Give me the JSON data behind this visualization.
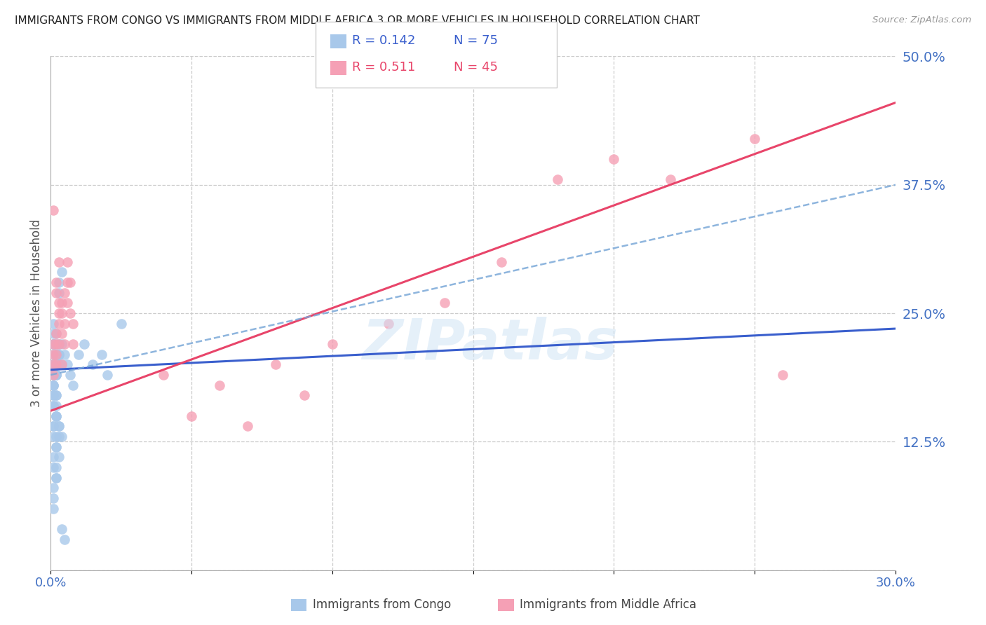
{
  "title": "IMMIGRANTS FROM CONGO VS IMMIGRANTS FROM MIDDLE AFRICA 3 OR MORE VEHICLES IN HOUSEHOLD CORRELATION CHART",
  "source": "Source: ZipAtlas.com",
  "ylabel": "3 or more Vehicles in Household",
  "legend_label1": "Immigrants from Congo",
  "legend_label2": "Immigrants from Middle Africa",
  "R1": 0.142,
  "N1": 75,
  "R2": 0.511,
  "N2": 45,
  "xlim": [
    0.0,
    0.3
  ],
  "ylim": [
    0.0,
    0.5
  ],
  "ytick_values": [
    0.0,
    0.125,
    0.25,
    0.375,
    0.5
  ],
  "color_congo": "#a8c8ea",
  "color_middle_africa": "#f5a0b5",
  "color_line_congo": "#3a5fcd",
  "color_line_middle_africa": "#e8456a",
  "color_dashed": "#7aa8d8",
  "color_axis_labels": "#4472c4",
  "background_color": "#ffffff",
  "watermark": "ZIPatlas",
  "congo_x": [
    0.001,
    0.001,
    0.001,
    0.001,
    0.001,
    0.002,
    0.002,
    0.002,
    0.002,
    0.002,
    0.001,
    0.001,
    0.001,
    0.001,
    0.002,
    0.002,
    0.002,
    0.003,
    0.003,
    0.003,
    0.001,
    0.001,
    0.001,
    0.002,
    0.002,
    0.002,
    0.003,
    0.003,
    0.004,
    0.004,
    0.001,
    0.001,
    0.001,
    0.002,
    0.002,
    0.002,
    0.001,
    0.001,
    0.002,
    0.002,
    0.001,
    0.001,
    0.002,
    0.002,
    0.001,
    0.001,
    0.002,
    0.003,
    0.003,
    0.002,
    0.001,
    0.001,
    0.002,
    0.003,
    0.002,
    0.001,
    0.003,
    0.004,
    0.002,
    0.001,
    0.025,
    0.005,
    0.006,
    0.007,
    0.008,
    0.01,
    0.012,
    0.015,
    0.004,
    0.003,
    0.02,
    0.018,
    0.003,
    0.004,
    0.005
  ],
  "congo_y": [
    0.21,
    0.22,
    0.2,
    0.23,
    0.24,
    0.21,
    0.22,
    0.2,
    0.23,
    0.19,
    0.2,
    0.19,
    0.18,
    0.22,
    0.2,
    0.21,
    0.19,
    0.2,
    0.21,
    0.22,
    0.17,
    0.18,
    0.19,
    0.2,
    0.21,
    0.19,
    0.2,
    0.21,
    0.22,
    0.2,
    0.16,
    0.17,
    0.18,
    0.16,
    0.17,
    0.15,
    0.14,
    0.16,
    0.15,
    0.17,
    0.13,
    0.14,
    0.12,
    0.13,
    0.11,
    0.1,
    0.09,
    0.14,
    0.13,
    0.15,
    0.08,
    0.07,
    0.1,
    0.11,
    0.12,
    0.06,
    0.14,
    0.13,
    0.09,
    0.22,
    0.24,
    0.21,
    0.2,
    0.19,
    0.18,
    0.21,
    0.22,
    0.2,
    0.29,
    0.27,
    0.19,
    0.21,
    0.28,
    0.04,
    0.03
  ],
  "middle_africa_x": [
    0.001,
    0.001,
    0.001,
    0.002,
    0.002,
    0.002,
    0.002,
    0.003,
    0.003,
    0.003,
    0.001,
    0.001,
    0.002,
    0.002,
    0.003,
    0.003,
    0.004,
    0.004,
    0.004,
    0.005,
    0.005,
    0.005,
    0.006,
    0.006,
    0.007,
    0.007,
    0.008,
    0.008,
    0.006,
    0.004,
    0.04,
    0.06,
    0.08,
    0.1,
    0.12,
    0.14,
    0.16,
    0.18,
    0.2,
    0.22,
    0.05,
    0.07,
    0.09,
    0.25,
    0.26
  ],
  "middle_africa_y": [
    0.21,
    0.35,
    0.2,
    0.22,
    0.21,
    0.27,
    0.28,
    0.26,
    0.25,
    0.3,
    0.19,
    0.22,
    0.2,
    0.23,
    0.24,
    0.22,
    0.25,
    0.26,
    0.23,
    0.27,
    0.22,
    0.24,
    0.28,
    0.26,
    0.25,
    0.28,
    0.24,
    0.22,
    0.3,
    0.2,
    0.19,
    0.18,
    0.2,
    0.22,
    0.24,
    0.26,
    0.3,
    0.38,
    0.4,
    0.38,
    0.15,
    0.14,
    0.17,
    0.42,
    0.19
  ],
  "line_congo_x0": 0.0,
  "line_congo_x1": 0.3,
  "line_congo_y0": 0.195,
  "line_congo_y1": 0.235,
  "line_ma_x0": 0.0,
  "line_ma_x1": 0.3,
  "line_ma_y0": 0.155,
  "line_ma_y1": 0.455,
  "line_dash_x0": 0.0,
  "line_dash_x1": 0.3,
  "line_dash_y0": 0.19,
  "line_dash_y1": 0.375
}
